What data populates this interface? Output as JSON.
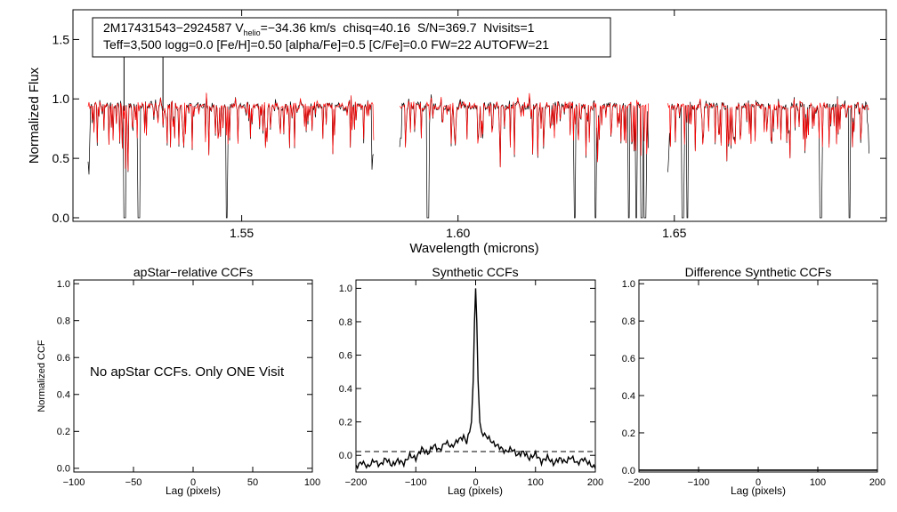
{
  "chart_data": [
    {
      "id": "spectrum",
      "type": "line",
      "xlabel": "Wavelength (microns)",
      "ylabel": "Normalized Flux",
      "xlim": [
        1.511,
        1.699
      ],
      "ylim": [
        -0.03,
        1.75
      ],
      "x_ticks": [
        1.55,
        1.6,
        1.65
      ],
      "x_tick_labels": [
        "1.55",
        "1.60",
        "1.65"
      ],
      "y_ticks": [
        0.0,
        0.5,
        1.0,
        1.5
      ],
      "y_tick_labels": [
        "0.0",
        "0.5",
        "1.0",
        "1.5"
      ],
      "chips": [
        [
          1.5145,
          1.5805
        ],
        [
          1.5865,
          1.644
        ],
        [
          1.6485,
          1.695
        ]
      ],
      "deep_lines": [
        1.523,
        1.5262,
        1.5465,
        1.593,
        1.627,
        1.6318,
        1.6395,
        1.6412,
        1.6425,
        1.6432,
        1.652,
        1.653,
        1.6838,
        1.6905
      ],
      "spikes": [
        [
          1.5228,
          1.37
        ],
        [
          1.5318,
          1.46
        ]
      ],
      "series": [
        {
          "name": "observed",
          "color": "#000000"
        },
        {
          "name": "model",
          "color": "#ff0000"
        }
      ],
      "annotation": {
        "id": "2M17431543−2924587",
        "v_label_prefix": "V",
        "v_label_sub": "helio",
        "v_value": "=−34.36 km/s",
        "line1_rest": "  chisq=40.16  S/N=369.7  Nvisits=1",
        "line2": "Teff=3,500 logg=0.0 [Fe/H]=0.50 [alpha/Fe]=0.5 [C/Fe]=0.0 FW=22 AUTOFW=21"
      }
    },
    {
      "id": "apstar",
      "type": "line",
      "title": "apStar−relative CCFs",
      "xlabel": "Lag (pixels)",
      "ylabel": "Normalized CCF",
      "xlim": [
        -100,
        100
      ],
      "ylim": [
        -0.02,
        1.02
      ],
      "x_ticks": [
        -100,
        -50,
        0,
        50,
        100
      ],
      "x_tick_labels": [
        "−100",
        "−50",
        "0",
        "50",
        "100"
      ],
      "y_ticks": [
        0.0,
        0.2,
        0.4,
        0.6,
        0.8,
        1.0
      ],
      "y_tick_labels": [
        "0.0",
        "0.2",
        "0.4",
        "0.6",
        "0.8",
        "1.0"
      ],
      "message": "No apStar CCFs.  Only ONE Visit",
      "series": []
    },
    {
      "id": "synthetic",
      "type": "line",
      "title": "Synthetic CCFs",
      "xlabel": "Lag (pixels)",
      "ylabel": "",
      "xlim": [
        -200,
        200
      ],
      "ylim": [
        -0.1,
        1.05
      ],
      "x_ticks": [
        -200,
        -100,
        0,
        100,
        200
      ],
      "x_tick_labels": [
        "−200",
        "−100",
        "0",
        "100",
        "200"
      ],
      "y_ticks": [
        0.0,
        0.2,
        0.4,
        0.6,
        0.8,
        1.0
      ],
      "y_tick_labels": [
        "0.0",
        "0.2",
        "0.4",
        "0.6",
        "0.8",
        "1.0"
      ],
      "reference_line": 0.0,
      "series": [
        {
          "name": "synthetic-ccf",
          "x": [
            -200,
            -190,
            -180,
            -170,
            -160,
            -150,
            -140,
            -130,
            -120,
            -110,
            -100,
            -90,
            -80,
            -70,
            -60,
            -50,
            -40,
            -30,
            -20,
            -15,
            -10,
            -7,
            -4,
            -2,
            0,
            2,
            4,
            7,
            10,
            15,
            20,
            30,
            40,
            50,
            60,
            70,
            80,
            90,
            100,
            110,
            120,
            130,
            140,
            150,
            160,
            170,
            180,
            190,
            200
          ],
          "y": [
            -0.07,
            -0.04,
            -0.07,
            -0.03,
            -0.06,
            -0.02,
            -0.06,
            -0.03,
            -0.05,
            0.0,
            -0.02,
            0.04,
            0.01,
            0.06,
            0.03,
            0.08,
            0.05,
            0.09,
            0.11,
            0.08,
            0.14,
            0.2,
            0.45,
            0.8,
            1.0,
            0.8,
            0.45,
            0.2,
            0.14,
            0.12,
            0.11,
            0.07,
            0.05,
            0.02,
            0.04,
            0.0,
            0.02,
            -0.02,
            0.01,
            -0.04,
            -0.01,
            -0.05,
            -0.02,
            -0.04,
            -0.01,
            -0.05,
            -0.02,
            -0.05,
            -0.08
          ]
        }
      ]
    },
    {
      "id": "difference",
      "type": "line",
      "title": "Difference Synthetic CCFs",
      "xlabel": "Lag (pixels)",
      "ylabel": "",
      "xlim": [
        -200,
        200
      ],
      "ylim": [
        -0.01,
        1.02
      ],
      "x_ticks": [
        -200,
        -100,
        0,
        100,
        200
      ],
      "x_tick_labels": [
        "−200",
        "−100",
        "0",
        "100",
        "200"
      ],
      "y_ticks": [
        0.0,
        0.2,
        0.4,
        0.6,
        0.8,
        1.0
      ],
      "y_tick_labels": [
        "0.0",
        "0.2",
        "0.4",
        "0.6",
        "0.8",
        "1.0"
      ],
      "series": [
        {
          "name": "difference-ccf",
          "x": [
            -200,
            200
          ],
          "y": [
            0.0,
            0.0
          ]
        }
      ]
    }
  ]
}
